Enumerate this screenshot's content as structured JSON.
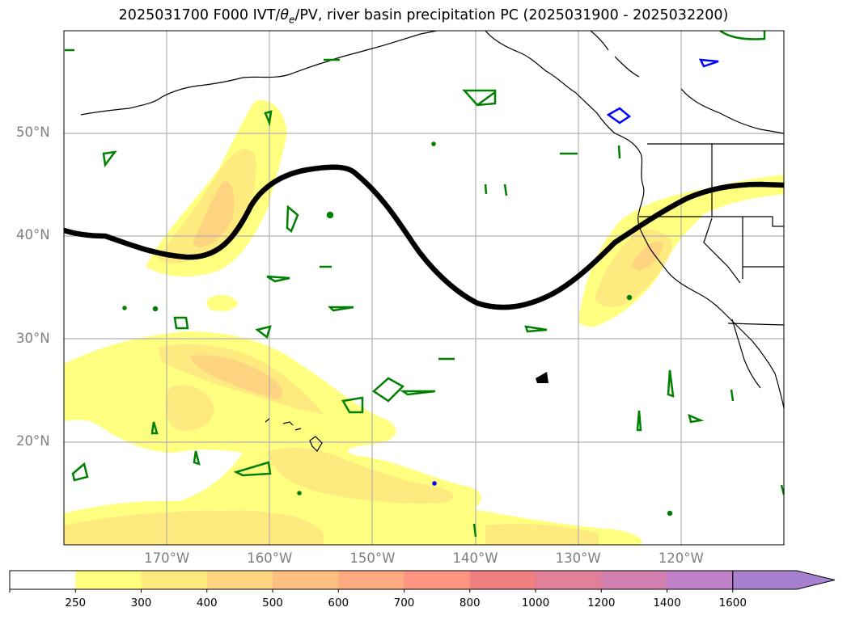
{
  "title": {
    "prefix": "2025031700 F000 IVT/",
    "theta": "θ",
    "theta_sub": "e",
    "suffix": "/PV, river basin precipitation PC (2025031900 - 2025032200)"
  },
  "map": {
    "lon_range": [
      -180,
      -110
    ],
    "lat_range": [
      10,
      60
    ],
    "lat_labels": [
      {
        "text": "50°N",
        "lat": 50
      },
      {
        "text": "40°N",
        "lat": 40
      },
      {
        "text": "30°N",
        "lat": 30
      },
      {
        "text": "20°N",
        "lat": 20
      }
    ],
    "lon_labels": [
      {
        "text": "170°W",
        "lon": -170
      },
      {
        "text": "160°W",
        "lon": -160
      },
      {
        "text": "150°W",
        "lon": -150
      },
      {
        "text": "140°W",
        "lon": -140
      },
      {
        "text": "130°W",
        "lon": -130
      },
      {
        "text": "120°W",
        "lon": -120
      }
    ],
    "jet_axis_color": "#000000",
    "precip_contour_color": "#008000",
    "pv_contour_color": "#0000ff"
  },
  "colorbar": {
    "levels": [
      "250",
      "300",
      "400",
      "500",
      "600",
      "700",
      "800",
      "1000",
      "1200",
      "1400",
      "1600"
    ],
    "colors": [
      "#ffffff",
      "#ffff80",
      "#ffea80",
      "#ffd480",
      "#ffbf80",
      "#ffaa80",
      "#ff9580",
      "#f08080",
      "#e17f98",
      "#d180b0",
      "#c080c8",
      "#a880d0"
    ],
    "extend": "max"
  }
}
